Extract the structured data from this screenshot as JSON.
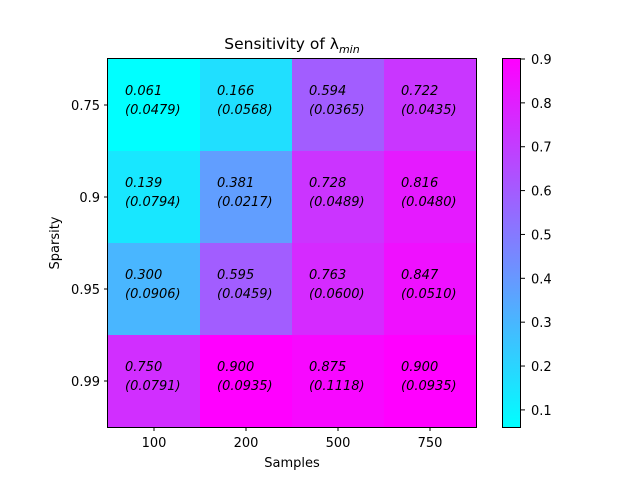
{
  "chart_data": {
    "type": "heatmap",
    "title": "Sensitivity of λ",
    "title_subscript": "min",
    "xlabel": "Samples",
    "ylabel": "Sparsity",
    "x_categories": [
      "100",
      "200",
      "500",
      "750"
    ],
    "y_categories": [
      "0.75",
      "0.9",
      "0.95",
      "0.99"
    ],
    "values": [
      [
        0.061,
        0.166,
        0.594,
        0.722
      ],
      [
        0.139,
        0.381,
        0.728,
        0.816
      ],
      [
        0.3,
        0.595,
        0.763,
        0.847
      ],
      [
        0.75,
        0.9,
        0.875,
        0.9
      ]
    ],
    "std": [
      [
        0.0479,
        0.0568,
        0.0365,
        0.0435
      ],
      [
        0.0794,
        0.0217,
        0.0489,
        0.048
      ],
      [
        0.0906,
        0.0459,
        0.06,
        0.051
      ],
      [
        0.0791,
        0.0935,
        0.1118,
        0.0935
      ]
    ],
    "cell_labels": [
      [
        [
          "0.061",
          "(0.0479)"
        ],
        [
          "0.166",
          "(0.0568)"
        ],
        [
          "0.594",
          "(0.0365)"
        ],
        [
          "0.722",
          "(0.0435)"
        ]
      ],
      [
        [
          "0.139",
          "(0.0794)"
        ],
        [
          "0.381",
          "(0.0217)"
        ],
        [
          "0.728",
          "(0.0489)"
        ],
        [
          "0.816",
          "(0.0480)"
        ]
      ],
      [
        [
          "0.300",
          "(0.0906)"
        ],
        [
          "0.595",
          "(0.0459)"
        ],
        [
          "0.763",
          "(0.0600)"
        ],
        [
          "0.847",
          "(0.0510)"
        ]
      ],
      [
        [
          "0.750",
          "(0.0791)"
        ],
        [
          "0.900",
          "(0.0935)"
        ],
        [
          "0.875",
          "(0.1118)"
        ],
        [
          "0.900",
          "(0.0935)"
        ]
      ]
    ],
    "colormap": "cool",
    "colormap_start": "#00ffff",
    "colormap_end": "#ff00ff",
    "colorbar": {
      "vmin": 0.061,
      "vmax": 0.9,
      "ticks": [
        0.1,
        0.2,
        0.3,
        0.4,
        0.5,
        0.6,
        0.7,
        0.8,
        0.9
      ],
      "tick_labels": [
        "0.1",
        "0.2",
        "0.3",
        "0.4",
        "0.5",
        "0.6",
        "0.7",
        "0.8",
        "0.9"
      ]
    },
    "grid": false
  }
}
